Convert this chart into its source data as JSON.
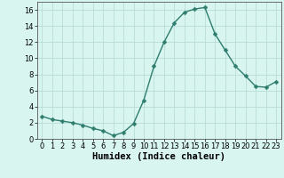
{
  "x": [
    0,
    1,
    2,
    3,
    4,
    5,
    6,
    7,
    8,
    9,
    10,
    11,
    12,
    13,
    14,
    15,
    16,
    17,
    18,
    19,
    20,
    21,
    22,
    23
  ],
  "y": [
    2.8,
    2.4,
    2.2,
    2.0,
    1.7,
    1.3,
    1.0,
    0.4,
    0.8,
    1.9,
    4.8,
    9.0,
    12.0,
    14.4,
    15.7,
    16.1,
    16.3,
    13.0,
    11.0,
    9.0,
    7.8,
    6.5,
    6.4,
    7.1
  ],
  "line_color": "#2e7d6e",
  "marker": "D",
  "marker_size": 2.5,
  "line_width": 1.0,
  "background_color": "#d8f5f0",
  "grid_color": "#b8ddd8",
  "xlabel": "Humidex (Indice chaleur)",
  "xlim": [
    -0.5,
    23.5
  ],
  "ylim": [
    0,
    17
  ],
  "yticks": [
    0,
    2,
    4,
    6,
    8,
    10,
    12,
    14,
    16
  ],
  "xticks": [
    0,
    1,
    2,
    3,
    4,
    5,
    6,
    7,
    8,
    9,
    10,
    11,
    12,
    13,
    14,
    15,
    16,
    17,
    18,
    19,
    20,
    21,
    22,
    23
  ],
  "tick_fontsize": 6.0,
  "label_fontsize": 7.5
}
